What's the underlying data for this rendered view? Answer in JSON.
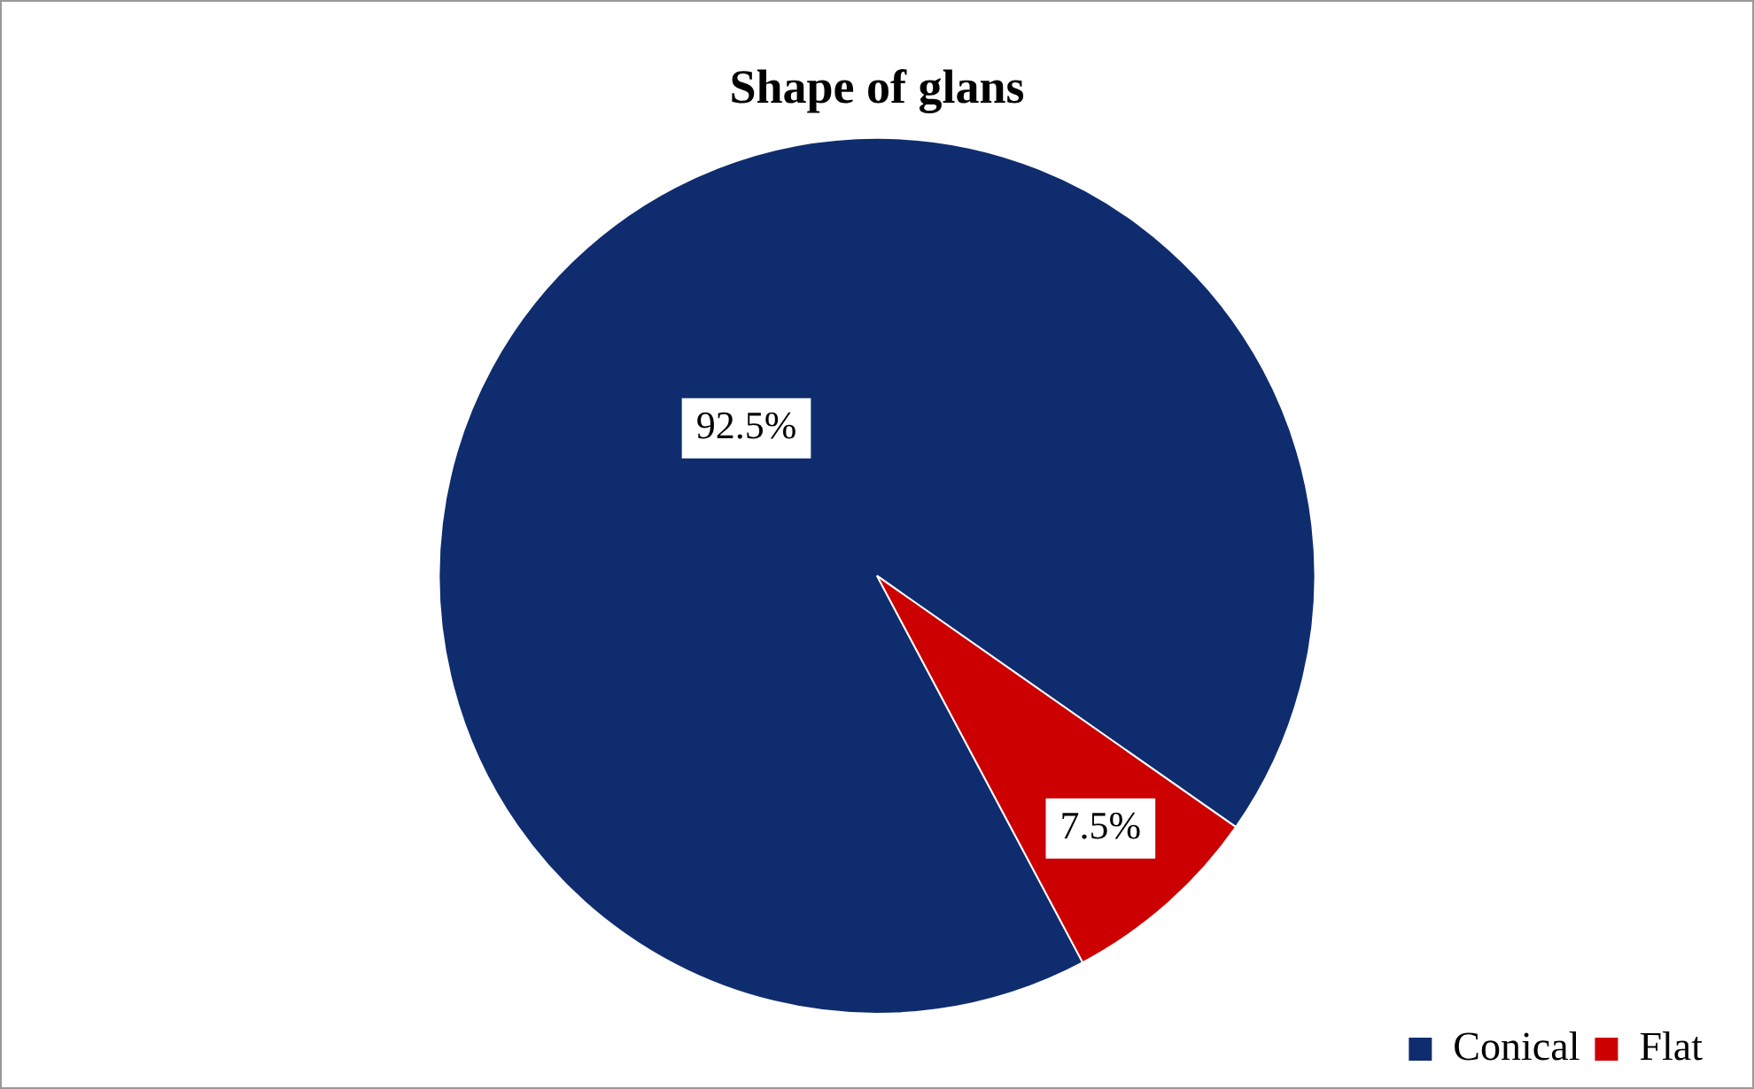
{
  "chart_data": {
    "type": "pie",
    "title": "Shape of glans",
    "categories": [
      "Conical",
      "Flat"
    ],
    "values": [
      92.5,
      7.5
    ],
    "colors": [
      "#0f2d6e",
      "#cc0000"
    ],
    "value_labels": [
      "92.5%",
      "7.5%"
    ],
    "legend": "bottom right"
  }
}
